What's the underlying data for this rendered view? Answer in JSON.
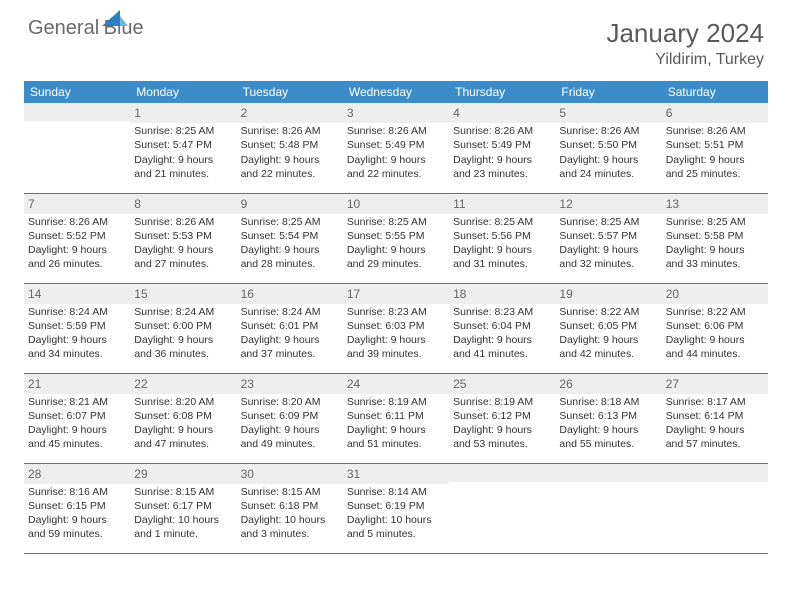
{
  "logo": {
    "line1": "General",
    "line2": "Blue"
  },
  "title": "January 2024",
  "location": "Yildirim, Turkey",
  "colors": {
    "header_bg": "#3c8cc9",
    "header_text": "#ffffff",
    "daynum_bg": "#eeeeee",
    "daynum_text": "#666666",
    "border": "#4a7aa8",
    "body_text": "#333333",
    "title_text": "#5a5a5a",
    "logo_gray": "#6b6b6b",
    "logo_blue": "#2f7fc0"
  },
  "weekdays": [
    "Sunday",
    "Monday",
    "Tuesday",
    "Wednesday",
    "Thursday",
    "Friday",
    "Saturday"
  ],
  "weeks": [
    [
      null,
      {
        "day": "1",
        "sunrise": "Sunrise: 8:25 AM",
        "sunset": "Sunset: 5:47 PM",
        "daylight": "Daylight: 9 hours and 21 minutes."
      },
      {
        "day": "2",
        "sunrise": "Sunrise: 8:26 AM",
        "sunset": "Sunset: 5:48 PM",
        "daylight": "Daylight: 9 hours and 22 minutes."
      },
      {
        "day": "3",
        "sunrise": "Sunrise: 8:26 AM",
        "sunset": "Sunset: 5:49 PM",
        "daylight": "Daylight: 9 hours and 22 minutes."
      },
      {
        "day": "4",
        "sunrise": "Sunrise: 8:26 AM",
        "sunset": "Sunset: 5:49 PM",
        "daylight": "Daylight: 9 hours and 23 minutes."
      },
      {
        "day": "5",
        "sunrise": "Sunrise: 8:26 AM",
        "sunset": "Sunset: 5:50 PM",
        "daylight": "Daylight: 9 hours and 24 minutes."
      },
      {
        "day": "6",
        "sunrise": "Sunrise: 8:26 AM",
        "sunset": "Sunset: 5:51 PM",
        "daylight": "Daylight: 9 hours and 25 minutes."
      }
    ],
    [
      {
        "day": "7",
        "sunrise": "Sunrise: 8:26 AM",
        "sunset": "Sunset: 5:52 PM",
        "daylight": "Daylight: 9 hours and 26 minutes."
      },
      {
        "day": "8",
        "sunrise": "Sunrise: 8:26 AM",
        "sunset": "Sunset: 5:53 PM",
        "daylight": "Daylight: 9 hours and 27 minutes."
      },
      {
        "day": "9",
        "sunrise": "Sunrise: 8:25 AM",
        "sunset": "Sunset: 5:54 PM",
        "daylight": "Daylight: 9 hours and 28 minutes."
      },
      {
        "day": "10",
        "sunrise": "Sunrise: 8:25 AM",
        "sunset": "Sunset: 5:55 PM",
        "daylight": "Daylight: 9 hours and 29 minutes."
      },
      {
        "day": "11",
        "sunrise": "Sunrise: 8:25 AM",
        "sunset": "Sunset: 5:56 PM",
        "daylight": "Daylight: 9 hours and 31 minutes."
      },
      {
        "day": "12",
        "sunrise": "Sunrise: 8:25 AM",
        "sunset": "Sunset: 5:57 PM",
        "daylight": "Daylight: 9 hours and 32 minutes."
      },
      {
        "day": "13",
        "sunrise": "Sunrise: 8:25 AM",
        "sunset": "Sunset: 5:58 PM",
        "daylight": "Daylight: 9 hours and 33 minutes."
      }
    ],
    [
      {
        "day": "14",
        "sunrise": "Sunrise: 8:24 AM",
        "sunset": "Sunset: 5:59 PM",
        "daylight": "Daylight: 9 hours and 34 minutes."
      },
      {
        "day": "15",
        "sunrise": "Sunrise: 8:24 AM",
        "sunset": "Sunset: 6:00 PM",
        "daylight": "Daylight: 9 hours and 36 minutes."
      },
      {
        "day": "16",
        "sunrise": "Sunrise: 8:24 AM",
        "sunset": "Sunset: 6:01 PM",
        "daylight": "Daylight: 9 hours and 37 minutes."
      },
      {
        "day": "17",
        "sunrise": "Sunrise: 8:23 AM",
        "sunset": "Sunset: 6:03 PM",
        "daylight": "Daylight: 9 hours and 39 minutes."
      },
      {
        "day": "18",
        "sunrise": "Sunrise: 8:23 AM",
        "sunset": "Sunset: 6:04 PM",
        "daylight": "Daylight: 9 hours and 41 minutes."
      },
      {
        "day": "19",
        "sunrise": "Sunrise: 8:22 AM",
        "sunset": "Sunset: 6:05 PM",
        "daylight": "Daylight: 9 hours and 42 minutes."
      },
      {
        "day": "20",
        "sunrise": "Sunrise: 8:22 AM",
        "sunset": "Sunset: 6:06 PM",
        "daylight": "Daylight: 9 hours and 44 minutes."
      }
    ],
    [
      {
        "day": "21",
        "sunrise": "Sunrise: 8:21 AM",
        "sunset": "Sunset: 6:07 PM",
        "daylight": "Daylight: 9 hours and 45 minutes."
      },
      {
        "day": "22",
        "sunrise": "Sunrise: 8:20 AM",
        "sunset": "Sunset: 6:08 PM",
        "daylight": "Daylight: 9 hours and 47 minutes."
      },
      {
        "day": "23",
        "sunrise": "Sunrise: 8:20 AM",
        "sunset": "Sunset: 6:09 PM",
        "daylight": "Daylight: 9 hours and 49 minutes."
      },
      {
        "day": "24",
        "sunrise": "Sunrise: 8:19 AM",
        "sunset": "Sunset: 6:11 PM",
        "daylight": "Daylight: 9 hours and 51 minutes."
      },
      {
        "day": "25",
        "sunrise": "Sunrise: 8:19 AM",
        "sunset": "Sunset: 6:12 PM",
        "daylight": "Daylight: 9 hours and 53 minutes."
      },
      {
        "day": "26",
        "sunrise": "Sunrise: 8:18 AM",
        "sunset": "Sunset: 6:13 PM",
        "daylight": "Daylight: 9 hours and 55 minutes."
      },
      {
        "day": "27",
        "sunrise": "Sunrise: 8:17 AM",
        "sunset": "Sunset: 6:14 PM",
        "daylight": "Daylight: 9 hours and 57 minutes."
      }
    ],
    [
      {
        "day": "28",
        "sunrise": "Sunrise: 8:16 AM",
        "sunset": "Sunset: 6:15 PM",
        "daylight": "Daylight: 9 hours and 59 minutes."
      },
      {
        "day": "29",
        "sunrise": "Sunrise: 8:15 AM",
        "sunset": "Sunset: 6:17 PM",
        "daylight": "Daylight: 10 hours and 1 minute."
      },
      {
        "day": "30",
        "sunrise": "Sunrise: 8:15 AM",
        "sunset": "Sunset: 6:18 PM",
        "daylight": "Daylight: 10 hours and 3 minutes."
      },
      {
        "day": "31",
        "sunrise": "Sunrise: 8:14 AM",
        "sunset": "Sunset: 6:19 PM",
        "daylight": "Daylight: 10 hours and 5 minutes."
      },
      null,
      null,
      null
    ]
  ]
}
